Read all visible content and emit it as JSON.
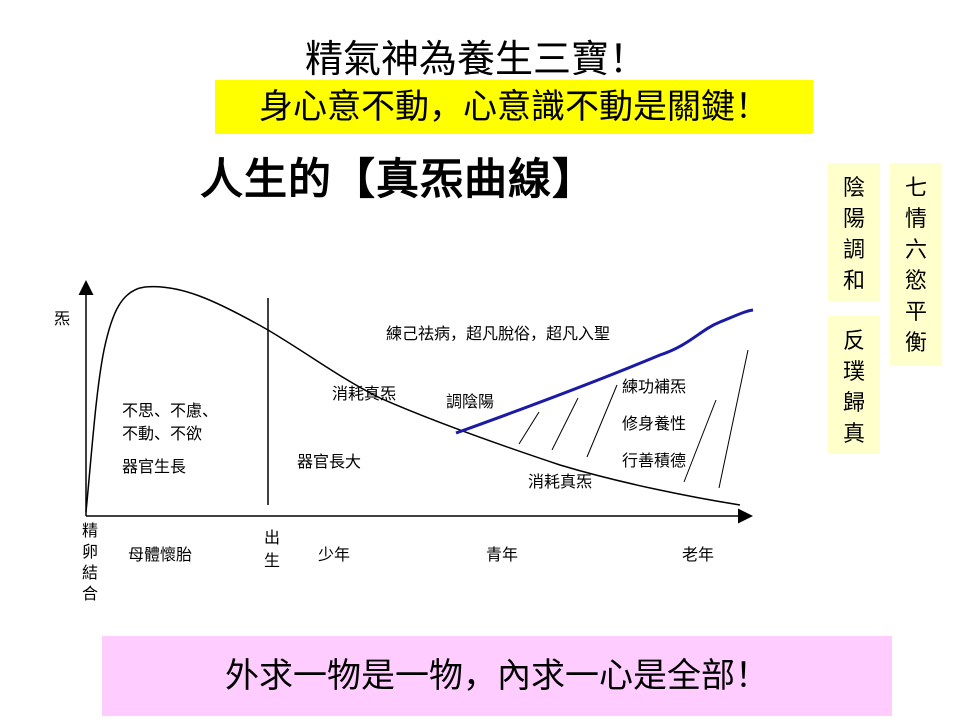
{
  "title": "精氣神為養生三寶！",
  "subtitle": "身心意不動，心意識不動是關鍵！",
  "heading": "人生的【真炁曲線】",
  "side_boxes": {
    "yinyang": [
      "陰",
      "陽",
      "調",
      "和"
    ],
    "return_true": [
      "反",
      "璞",
      "歸",
      "真"
    ],
    "emotions": [
      "七",
      "情",
      "六",
      "慾",
      "平",
      "衡"
    ]
  },
  "footer": "外求一物是一物，內求一心是全部！",
  "diagram": {
    "y_axis_label": "炁",
    "x_origin_label": [
      "精",
      "卵",
      "結",
      "合"
    ],
    "birth_label": [
      "出",
      "生"
    ],
    "stages": [
      "母體懷胎",
      "少年",
      "青年",
      "老年"
    ],
    "labels": {
      "no_thought": [
        "不思、不慮、",
        "不動、不欲"
      ],
      "organ_growth": "器官生長",
      "consume_youth": "消耗真炁",
      "organ_grow_big": "器官長大",
      "regulate": "調陰陽",
      "cultivation_goal": "練己祛病，超凡脫俗，超凡入聖",
      "practices": [
        "練功補炁",
        "修身養性",
        "行善積德"
      ],
      "consume_old": "消耗真炁"
    },
    "colors": {
      "blue_curve": "#1a1aa6",
      "axis": "#000000"
    }
  }
}
